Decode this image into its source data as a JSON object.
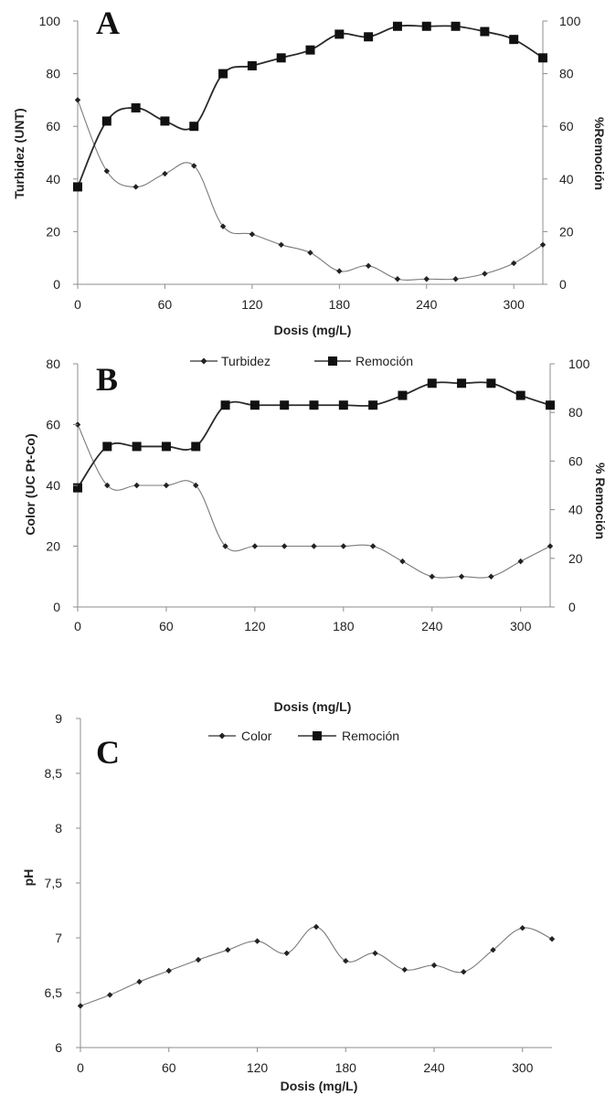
{
  "chart_data": [
    {
      "type": "line",
      "panel_label": "A",
      "x": [
        0,
        20,
        40,
        60,
        80,
        100,
        120,
        140,
        160,
        180,
        200,
        220,
        240,
        260,
        280,
        300,
        320
      ],
      "xlabel": "Dosis (mg/L)",
      "xticks": [
        0,
        60,
        120,
        180,
        240,
        300
      ],
      "xtick_labels": [
        "0",
        "60",
        "120",
        "180",
        "240",
        "300"
      ],
      "xlim": [
        0,
        320
      ],
      "ylabel": "Turbidez (UNT)",
      "ylim": [
        0,
        100
      ],
      "yticks": [
        0,
        20,
        40,
        60,
        80,
        100
      ],
      "ytick_labels": [
        "0",
        "20",
        "40",
        "60",
        "80",
        "100"
      ],
      "y2label": "%Remoción",
      "y2lim": [
        0,
        100
      ],
      "y2ticks": [
        0,
        20,
        40,
        60,
        80,
        100
      ],
      "y2tick_labels": [
        "0",
        "20",
        "40",
        "60",
        "80",
        "100"
      ],
      "legend": {
        "placement": "bottom-center",
        "entries": [
          "Turbidez",
          "Remoción"
        ]
      },
      "grid": false,
      "series": [
        {
          "name": "Turbidez",
          "axis": "left",
          "marker": "diamond",
          "smooth": true,
          "values": [
            70,
            43,
            37,
            42,
            45,
            22,
            19,
            15,
            12,
            5,
            7,
            2,
            2,
            2,
            4,
            8,
            15
          ]
        },
        {
          "name": "Remoción",
          "axis": "right",
          "marker": "square",
          "smooth": true,
          "values": [
            37,
            62,
            67,
            62,
            60,
            80,
            83,
            86,
            89,
            95,
            94,
            98,
            98,
            98,
            96,
            93,
            86
          ]
        }
      ]
    },
    {
      "type": "line",
      "panel_label": "B",
      "x": [
        0,
        20,
        40,
        60,
        80,
        100,
        120,
        140,
        160,
        180,
        200,
        220,
        240,
        260,
        280,
        300,
        320
      ],
      "xlabel": "Dosis (mg/L)",
      "xticks": [
        0,
        60,
        120,
        180,
        240,
        300
      ],
      "xtick_labels": [
        "0",
        "60",
        "120",
        "180",
        "240",
        "300"
      ],
      "xlim": [
        0,
        320
      ],
      "ylabel": "Color (UC Pt-Co)",
      "ylim": [
        0,
        80
      ],
      "yticks": [
        0,
        20,
        40,
        60,
        80
      ],
      "ytick_labels": [
        "0",
        "20",
        "40",
        "60",
        "80"
      ],
      "y2label": "% Remoción",
      "y2lim": [
        0,
        100
      ],
      "y2ticks": [
        0,
        20,
        40,
        60,
        80,
        100
      ],
      "y2tick_labels": [
        "0",
        "20",
        "40",
        "60",
        "80",
        "100"
      ],
      "legend": {
        "placement": "bottom-center",
        "entries": [
          "Color",
          "Remoción"
        ]
      },
      "grid": false,
      "series": [
        {
          "name": "Color",
          "axis": "left",
          "marker": "diamond",
          "smooth": true,
          "values": [
            60,
            40,
            40,
            40,
            40,
            20,
            20,
            20,
            20,
            20,
            20,
            15,
            10,
            10,
            10,
            15,
            20
          ]
        },
        {
          "name": "Remoción",
          "axis": "right",
          "marker": "square",
          "smooth": true,
          "values": [
            49,
            66,
            66,
            66,
            66,
            83,
            83,
            83,
            83,
            83,
            83,
            87,
            92,
            92,
            92,
            87,
            83
          ]
        }
      ]
    },
    {
      "type": "line",
      "panel_label": "C",
      "x": [
        0,
        20,
        40,
        60,
        80,
        100,
        120,
        140,
        160,
        180,
        200,
        220,
        240,
        260,
        280,
        300,
        320
      ],
      "xlabel": "Dosis (mg/L)",
      "xticks": [
        0,
        60,
        120,
        180,
        240,
        300
      ],
      "xtick_labels": [
        "0",
        "60",
        "120",
        "180",
        "240",
        "300"
      ],
      "xlim": [
        0,
        320
      ],
      "ylabel": "pH",
      "ylim": [
        6,
        9
      ],
      "yticks": [
        6,
        6.5,
        7,
        7.5,
        8,
        8.5,
        9
      ],
      "ytick_labels": [
        "6",
        "6,5",
        "7",
        "7,5",
        "8",
        "8,5",
        "9"
      ],
      "grid": false,
      "series": [
        {
          "axis": "left",
          "marker": "diamond",
          "smooth": true,
          "values": [
            6.38,
            6.48,
            6.6,
            6.7,
            6.8,
            6.89,
            6.97,
            6.86,
            7.1,
            6.79,
            6.86,
            6.71,
            6.75,
            6.69,
            6.89,
            7.09,
            6.99
          ]
        }
      ]
    }
  ]
}
